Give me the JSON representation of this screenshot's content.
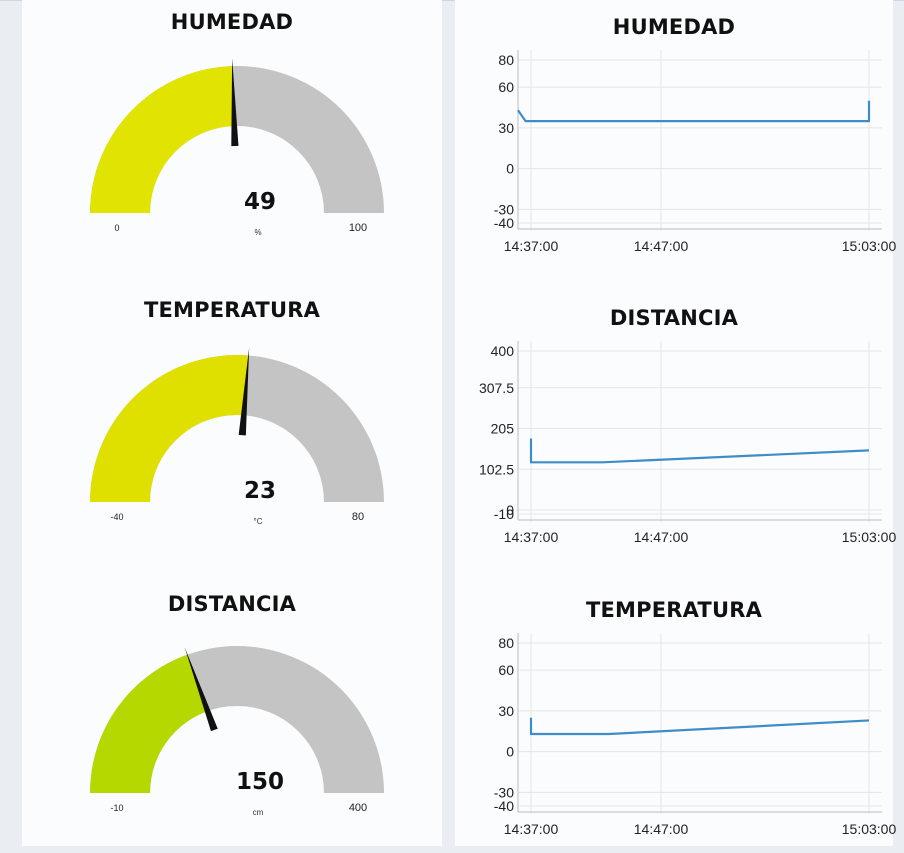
{
  "gauges": [
    {
      "title": "HUMEDAD",
      "value": 49,
      "display": "49",
      "unit": "%",
      "min": 0,
      "max": 100,
      "min_label": "0",
      "max_label": "100",
      "fill_color": "#e0e400",
      "track_color": "#c4c4c4",
      "needle_color": "#111111"
    },
    {
      "title": "TEMPERATURA",
      "value": 23,
      "display": "23",
      "unit": "°C",
      "min": -40,
      "max": 80,
      "min_label": "-40",
      "max_label": "80",
      "fill_color": "#e0e000",
      "track_color": "#c4c4c4",
      "needle_color": "#111111"
    },
    {
      "title": "DISTANCIA",
      "value": 150,
      "display": "150",
      "unit": "cm",
      "min": -10,
      "max": 400,
      "min_label": "-10",
      "max_label": "400",
      "fill_color": "#b4d800",
      "track_color": "#c4c4c4",
      "needle_color": "#111111"
    }
  ],
  "chart_data": [
    {
      "type": "line",
      "title": "HUMEDAD",
      "x_ticks": [
        "14:37:00",
        "14:47:00",
        "15:03:00"
      ],
      "y_ticks": [
        "-40",
        "-30",
        "0",
        "30",
        "60",
        "80"
      ],
      "ylim": [
        -40,
        80
      ],
      "xlim": [
        "14:36:00",
        "15:04:00"
      ],
      "grid": true,
      "line_color": "#3d8dc8",
      "series": [
        {
          "points": [
            [
              "14:36:00",
              43
            ],
            [
              "14:36:35",
              35
            ],
            [
              "14:47:00",
              35
            ],
            [
              "15:03:00",
              35
            ],
            [
              "15:03:00",
              50
            ]
          ]
        }
      ]
    },
    {
      "type": "line",
      "title": "DISTANCIA",
      "x_ticks": [
        "14:37:00",
        "14:47:00",
        "15:03:00"
      ],
      "y_ticks": [
        "-10",
        "0",
        "102.5",
        "205",
        "307.5",
        "400"
      ],
      "ylim": [
        -10,
        400
      ],
      "xlim": [
        "14:36:00",
        "15:04:00"
      ],
      "grid": true,
      "line_color": "#3d8dc8",
      "series": [
        {
          "points": [
            [
              "14:37:00",
              180
            ],
            [
              "14:37:00",
              120
            ],
            [
              "14:42:30",
              120
            ],
            [
              "15:03:00",
              150
            ]
          ]
        }
      ]
    },
    {
      "type": "line",
      "title": "TEMPERATURA",
      "x_ticks": [
        "14:37:00",
        "14:47:00",
        "15:03:00"
      ],
      "y_ticks": [
        "-40",
        "-30",
        "0",
        "30",
        "60",
        "80"
      ],
      "ylim": [
        -40,
        80
      ],
      "xlim": [
        "14:36:00",
        "15:04:00"
      ],
      "grid": true,
      "line_color": "#3d8dc8",
      "series": [
        {
          "points": [
            [
              "14:37:00",
              25
            ],
            [
              "14:37:00",
              13
            ],
            [
              "14:43:00",
              13
            ],
            [
              "15:03:00",
              23
            ]
          ]
        }
      ]
    }
  ]
}
